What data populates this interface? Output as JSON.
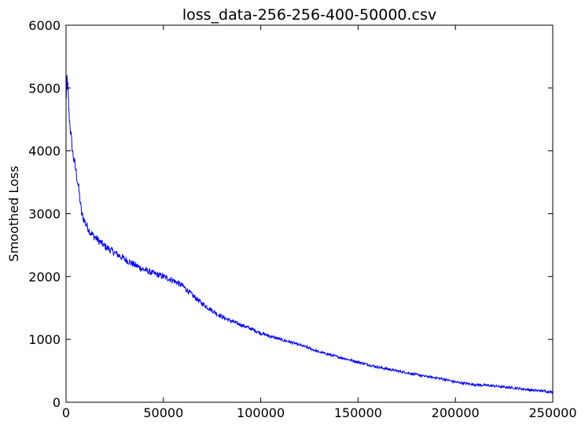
{
  "chart_data": {
    "type": "line",
    "title": "loss_data-256-256-400-50000.csv",
    "xlabel": "",
    "ylabel": "Smoothed Loss",
    "xlim": [
      0,
      250000
    ],
    "ylim": [
      0,
      6000
    ],
    "x_ticks": [
      0,
      50000,
      100000,
      150000,
      200000,
      250000
    ],
    "y_ticks": [
      0,
      1000,
      2000,
      3000,
      4000,
      5000,
      6000
    ],
    "x_tick_labels": [
      "0",
      "50000",
      "100000",
      "150000",
      "200000",
      "250000"
    ],
    "y_tick_labels": [
      "0",
      "1000",
      "2000",
      "3000",
      "4000",
      "5000",
      "6000"
    ],
    "grid": false,
    "legend": "none",
    "series": [
      {
        "color": "#0000ff",
        "x": [
          0,
          500,
          1000,
          1500,
          2500,
          3500,
          5000,
          6500,
          8000,
          10000,
          12500,
          15000,
          17500,
          20000,
          25000,
          30000,
          35000,
          40000,
          45000,
          50000,
          55000,
          60000,
          65000,
          70000,
          75000,
          80000,
          85000,
          90000,
          95000,
          100000,
          105000,
          110000,
          115000,
          120000,
          125000,
          130000,
          135000,
          140000,
          145000,
          150000,
          155000,
          160000,
          165000,
          170000,
          175000,
          180000,
          185000,
          190000,
          195000,
          200000,
          205000,
          210000,
          215000,
          220000,
          225000,
          230000,
          235000,
          240000,
          245000,
          250000
        ],
        "y": [
          4800,
          5150,
          4950,
          4600,
          4250,
          3950,
          3700,
          3400,
          3000,
          2850,
          2700,
          2620,
          2550,
          2480,
          2380,
          2280,
          2190,
          2110,
          2050,
          2000,
          1940,
          1850,
          1700,
          1570,
          1460,
          1360,
          1290,
          1230,
          1170,
          1100,
          1050,
          1000,
          960,
          910,
          860,
          800,
          760,
          720,
          680,
          640,
          600,
          560,
          530,
          500,
          470,
          440,
          410,
          390,
          360,
          320,
          300,
          280,
          270,
          260,
          240,
          230,
          210,
          190,
          180,
          160
        ]
      }
    ]
  }
}
